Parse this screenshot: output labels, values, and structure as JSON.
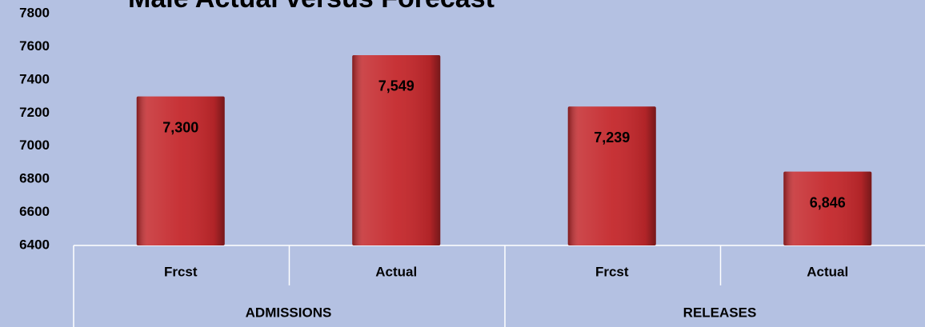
{
  "chart_data": {
    "type": "bar",
    "title": "Male Actual versus Forecast",
    "categories": [
      "Frcst",
      "Actual",
      "Frcst",
      "Actual"
    ],
    "groups": [
      "ADMISSIONS",
      "RELEASES"
    ],
    "values": [
      7300,
      7549,
      7239,
      6846
    ],
    "value_labels": [
      "7,300",
      "7,549",
      "7,239",
      "6,846"
    ],
    "color": "#c4282c",
    "ylim": [
      6400,
      7800
    ],
    "yticks": [
      6400,
      6600,
      6800,
      7000,
      7200,
      7400,
      7600,
      7800
    ],
    "grid": false
  }
}
